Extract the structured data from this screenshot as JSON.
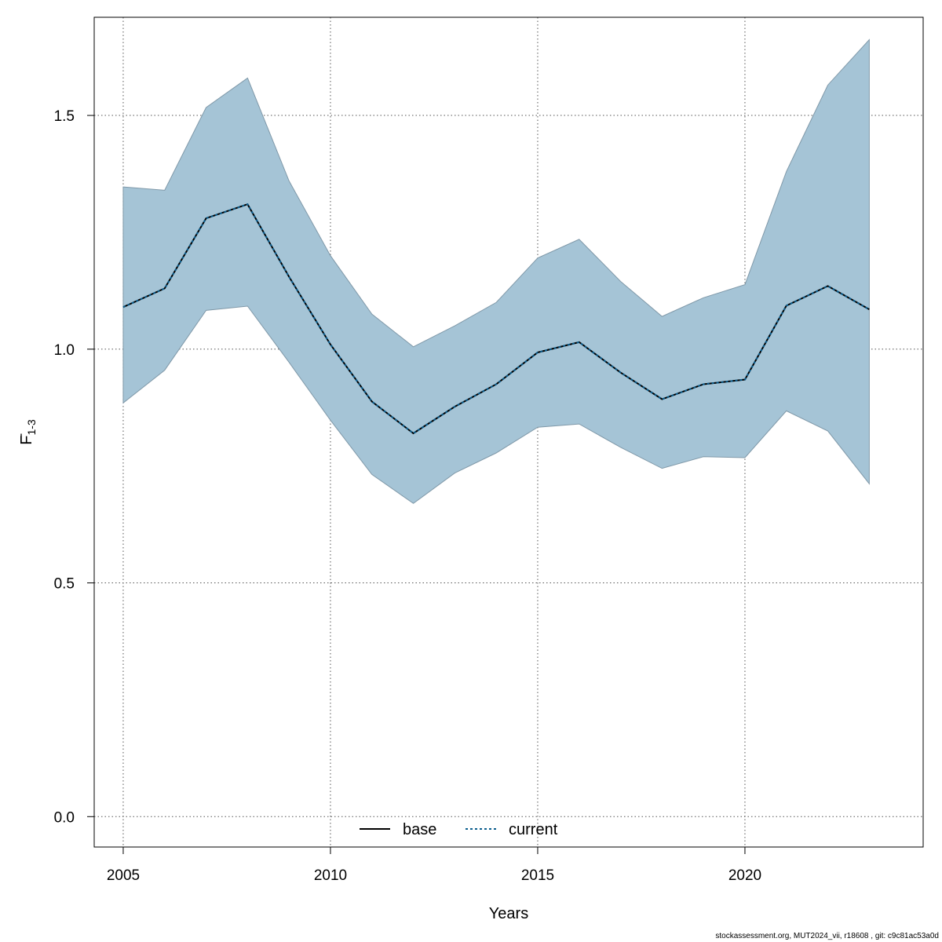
{
  "chart_data": {
    "type": "area",
    "title": "",
    "xlabel": "Years",
    "ylabel": "F",
    "ylabel_subscript": "1-3",
    "xlim": [
      2004.3,
      2024.3
    ],
    "ylim": [
      -0.065,
      1.71
    ],
    "xticks": [
      2005,
      2010,
      2015,
      2020
    ],
    "yticks": [
      0.0,
      0.5,
      1.0,
      1.5
    ],
    "ytick_labels": [
      "0.0",
      "0.5",
      "1.0",
      "1.5"
    ],
    "grid": true,
    "legend_position": "bottom-center",
    "x": [
      2005,
      2006,
      2007,
      2008,
      2009,
      2010,
      2011,
      2012,
      2013,
      2014,
      2015,
      2016,
      2017,
      2018,
      2019,
      2020,
      2021,
      2022,
      2023
    ],
    "ci_band": {
      "color": "#a5c4d6",
      "edge_color": "#7f98a8",
      "upper": [
        1.347,
        1.34,
        1.517,
        1.58,
        1.36,
        1.2,
        1.075,
        1.005,
        1.05,
        1.1,
        1.195,
        1.235,
        1.145,
        1.07,
        1.11,
        1.138,
        1.38,
        1.565,
        1.662
      ],
      "lower": [
        0.885,
        0.955,
        1.083,
        1.092,
        0.972,
        0.848,
        0.732,
        0.67,
        0.735,
        0.778,
        0.833,
        0.84,
        0.79,
        0.745,
        0.77,
        0.768,
        0.868,
        0.825,
        0.712
      ]
    },
    "series": [
      {
        "name": "base",
        "color": "#000000",
        "dash": "solid",
        "values": [
          1.09,
          1.13,
          1.28,
          1.31,
          1.155,
          1.01,
          0.888,
          0.82,
          0.877,
          0.925,
          0.993,
          1.015,
          0.95,
          0.893,
          0.925,
          0.935,
          1.093,
          1.135,
          1.085
        ]
      },
      {
        "name": "current",
        "color": "#0b5e8e",
        "dash": "dotted",
        "values": [
          1.09,
          1.13,
          1.28,
          1.31,
          1.155,
          1.01,
          0.888,
          0.82,
          0.877,
          0.925,
          0.993,
          1.015,
          0.95,
          0.893,
          0.925,
          0.935,
          1.093,
          1.135,
          1.085
        ]
      }
    ]
  },
  "footer": "stockassessment.org, MUT2024_vii, r18608 , git: c9c81ac53a0d"
}
